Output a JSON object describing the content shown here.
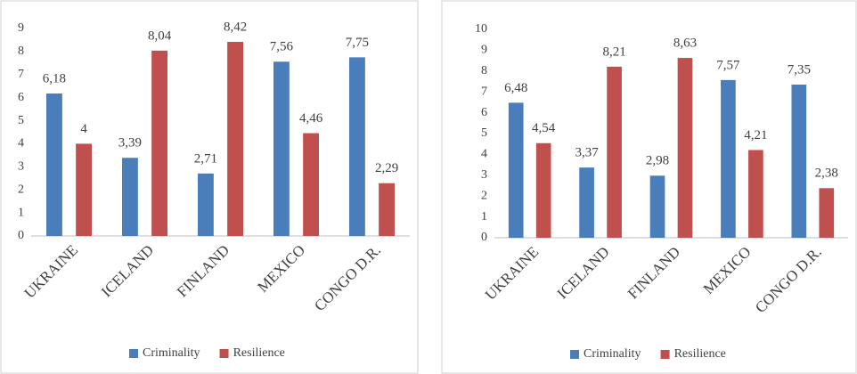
{
  "chart_data": [
    {
      "type": "bar",
      "categories": [
        "UKRAINE",
        "ICELAND",
        "FINLAND",
        "MEXICO",
        "CONGO D.R."
      ],
      "series": [
        {
          "name": "Criminality",
          "color": "#4a7ebb",
          "values": [
            6.18,
            3.39,
            2.71,
            7.56,
            7.75
          ],
          "value_labels": [
            "6,18",
            "3,39",
            "2,71",
            "7,56",
            "7,75"
          ]
        },
        {
          "name": "Resilience",
          "color": "#c0504d",
          "values": [
            4,
            8.04,
            8.42,
            4.46,
            2.29
          ],
          "value_labels": [
            "4",
            "8,04",
            "8,42",
            "4,46",
            "2,29"
          ]
        }
      ],
      "ylim": [
        0,
        9
      ],
      "yticks": [
        0,
        1,
        2,
        3,
        4,
        5,
        6,
        7,
        8,
        9
      ],
      "grid": false,
      "legend": "bottom"
    },
    {
      "type": "bar",
      "categories": [
        "UKRAINE",
        "ICELAND",
        "FINLAND",
        "MEXICO",
        "CONGO D.R."
      ],
      "series": [
        {
          "name": "Criminality",
          "color": "#4a7ebb",
          "values": [
            6.48,
            3.37,
            2.98,
            7.57,
            7.35
          ],
          "value_labels": [
            "6,48",
            "3,37",
            "2,98",
            "7,57",
            "7,35"
          ]
        },
        {
          "name": "Resilience",
          "color": "#c0504d",
          "values": [
            4.54,
            8.21,
            8.63,
            4.21,
            2.38
          ],
          "value_labels": [
            "4,54",
            "8,21",
            "8,63",
            "4,21",
            "2,38"
          ]
        }
      ],
      "ylim": [
        0,
        10
      ],
      "yticks": [
        0,
        1,
        2,
        3,
        4,
        5,
        6,
        7,
        8,
        9,
        10
      ],
      "grid": false,
      "legend": "bottom"
    }
  ]
}
